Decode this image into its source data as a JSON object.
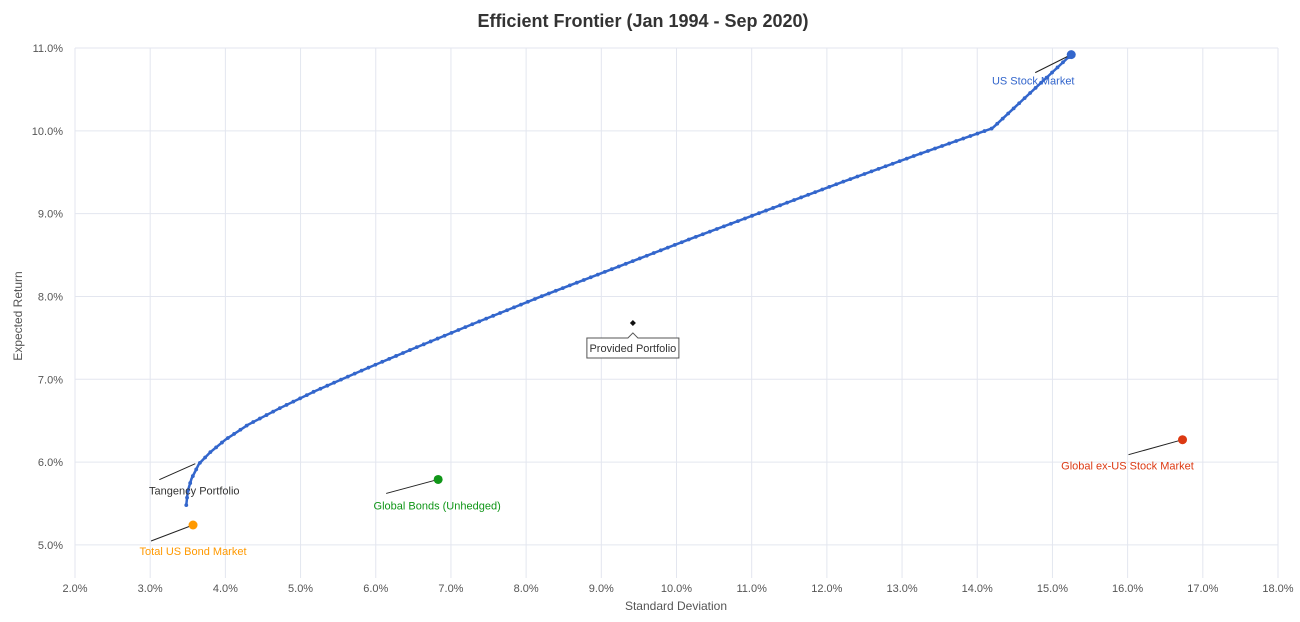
{
  "chart_data": {
    "type": "scatter",
    "title": "Efficient Frontier (Jan 1994 - Sep 2020)",
    "xlabel": "Standard Deviation",
    "ylabel": "Expected Return",
    "xlim": [
      2.0,
      18.0
    ],
    "ylim": [
      4.6,
      11.0
    ],
    "x_ticks": [
      2,
      3,
      4,
      5,
      6,
      7,
      8,
      9,
      10,
      11,
      12,
      13,
      14,
      15,
      16,
      17,
      18
    ],
    "y_ticks": [
      5,
      6,
      7,
      8,
      9,
      10,
      11
    ],
    "x_tick_labels": [
      "2.0%",
      "3.0%",
      "4.0%",
      "5.0%",
      "6.0%",
      "7.0%",
      "8.0%",
      "9.0%",
      "10.0%",
      "11.0%",
      "12.0%",
      "13.0%",
      "14.0%",
      "15.0%",
      "16.0%",
      "17.0%",
      "18.0%"
    ],
    "y_tick_labels": [
      "5.0%",
      "6.0%",
      "7.0%",
      "8.0%",
      "9.0%",
      "10.0%",
      "11.0%"
    ],
    "grid": true,
    "frontier": {
      "color": "#3366cc",
      "x": [
        3.48,
        3.5,
        3.55,
        3.65,
        3.8,
        4.0,
        4.3,
        4.7,
        5.2,
        5.8,
        6.5,
        7.3,
        8.2,
        9.2,
        10.2,
        11.2,
        12.2,
        13.2,
        14.2,
        15.25
      ],
      "y": [
        5.48,
        5.65,
        5.8,
        5.98,
        6.12,
        6.27,
        6.45,
        6.64,
        6.86,
        7.1,
        7.37,
        7.67,
        8.0,
        8.35,
        8.7,
        9.04,
        9.38,
        9.71,
        10.03,
        10.92
      ]
    },
    "points": [
      {
        "name": "US Stock Market",
        "x": 15.25,
        "y": 10.92,
        "color": "#3366cc",
        "label_color": "#3366cc"
      },
      {
        "name": "Global ex-US Stock Market",
        "x": 16.73,
        "y": 6.27,
        "color": "#dc3912",
        "label_color": "#dc3912"
      },
      {
        "name": "Global Bonds (Unhedged)",
        "x": 6.83,
        "y": 5.79,
        "color": "#109618",
        "label_color": "#109618"
      },
      {
        "name": "Total US Bond Market",
        "x": 3.57,
        "y": 5.24,
        "color": "#ff9900",
        "label_color": "#ff9900"
      }
    ],
    "annotations": {
      "tangency": {
        "name": "Tangency Portfolio",
        "x": 3.6,
        "y": 5.98
      },
      "provided": {
        "name": "Provided Portfolio",
        "x": 9.42,
        "y": 7.68
      }
    }
  }
}
